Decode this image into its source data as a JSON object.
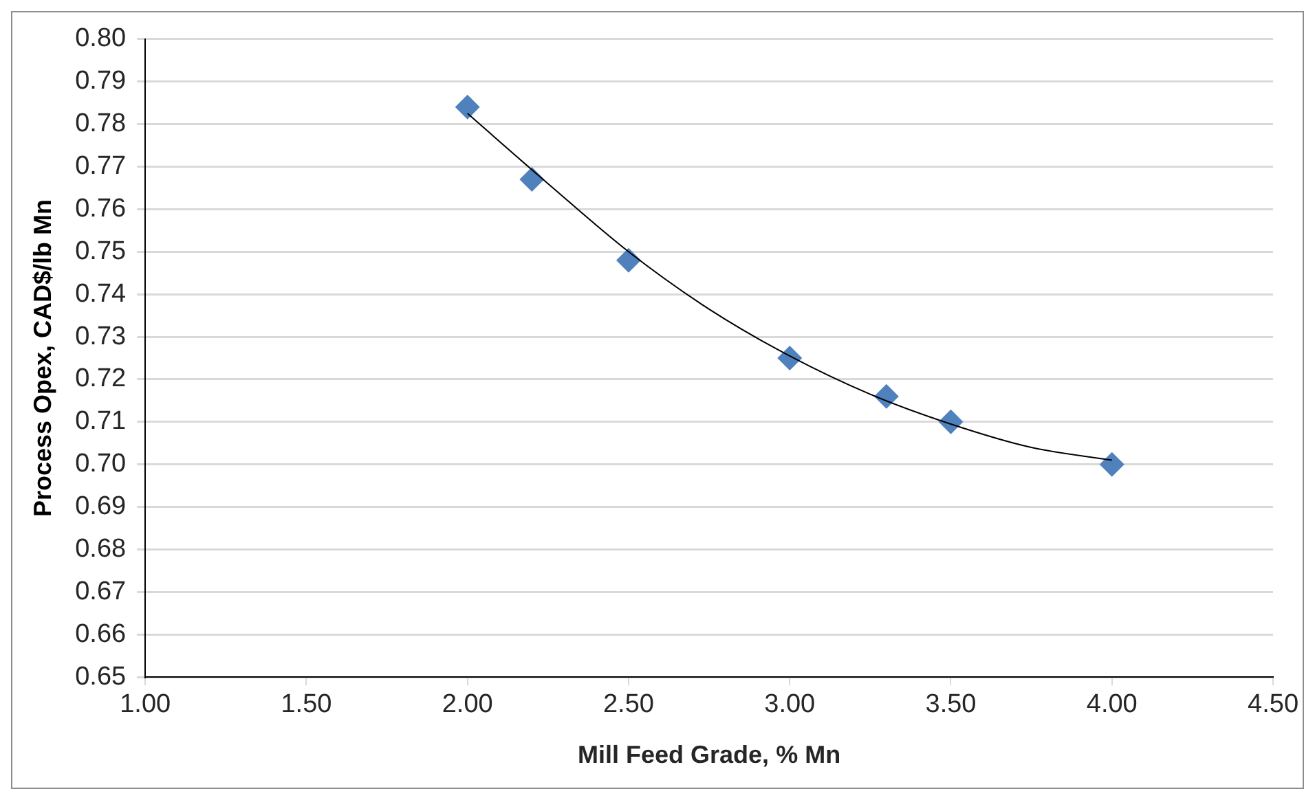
{
  "chart_data": {
    "type": "scatter",
    "xlabel": "Mill Feed Grade, % Mn",
    "ylabel": "Process Opex, CAD$/lb Mn",
    "x": [
      2.0,
      2.2,
      2.5,
      3.0,
      3.3,
      3.5,
      4.0
    ],
    "series": [
      {
        "color": "#4f81bd",
        "marker": "diamond",
        "values": [
          0.784,
          0.767,
          0.748,
          0.725,
          0.716,
          0.71,
          0.7
        ]
      },
      {
        "type": "line",
        "color": "#000000",
        "marker": "none",
        "x": [
          2.0,
          2.25,
          2.5,
          2.75,
          3.0,
          3.25,
          3.5,
          3.75,
          4.0
        ],
        "values": [
          0.7825,
          0.766,
          0.75,
          0.7365,
          0.7255,
          0.7165,
          0.7095,
          0.704,
          0.701
        ]
      }
    ],
    "xlim": [
      1.0,
      4.5
    ],
    "xticks": [
      {
        "value": 1.0,
        "label": "1.00"
      },
      {
        "value": 1.5,
        "label": "1.50"
      },
      {
        "value": 2.0,
        "label": "2.00"
      },
      {
        "value": 2.5,
        "label": "2.50"
      },
      {
        "value": 3.0,
        "label": "3.00"
      },
      {
        "value": 3.5,
        "label": "3.50"
      },
      {
        "value": 4.0,
        "label": "4.00"
      },
      {
        "value": 4.5,
        "label": "4.50"
      }
    ],
    "ylim": [
      0.65,
      0.8
    ],
    "yticks": [
      {
        "value": 0.65,
        "label": "0.65"
      },
      {
        "value": 0.66,
        "label": "0.66"
      },
      {
        "value": 0.67,
        "label": "0.67"
      },
      {
        "value": 0.68,
        "label": "0.68"
      },
      {
        "value": 0.69,
        "label": "0.69"
      },
      {
        "value": 0.7,
        "label": "0.70"
      },
      {
        "value": 0.71,
        "label": "0.71"
      },
      {
        "value": 0.72,
        "label": "0.72"
      },
      {
        "value": 0.73,
        "label": "0.73"
      },
      {
        "value": 0.74,
        "label": "0.74"
      },
      {
        "value": 0.75,
        "label": "0.75"
      },
      {
        "value": 0.76,
        "label": "0.76"
      },
      {
        "value": 0.77,
        "label": "0.77"
      },
      {
        "value": 0.78,
        "label": "0.78"
      },
      {
        "value": 0.79,
        "label": "0.79"
      },
      {
        "value": 0.8,
        "label": "0.80"
      }
    ],
    "grid": "y",
    "legend": false
  }
}
